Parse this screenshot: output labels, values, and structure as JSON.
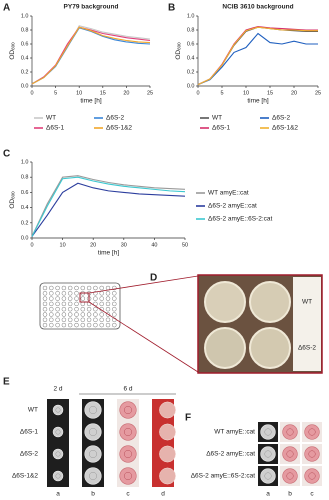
{
  "chart_data": [
    {
      "type": "line",
      "panel_label": "A",
      "title": "PY79 background",
      "ylabel": "OD",
      "ylabel_sub": "600",
      "xlabel": "time [h]",
      "x": [
        0,
        2.5,
        5,
        7.5,
        10,
        12.5,
        15,
        17.5,
        20,
        22.5,
        25
      ],
      "xlim": [
        0,
        25
      ],
      "xticks": [
        0,
        5,
        10,
        15,
        20,
        25
      ],
      "ylim": [
        0,
        1
      ],
      "yticks": [
        {
          "value": 0,
          "label": "0.0"
        },
        0.2,
        0.4,
        0.6,
        0.8,
        {
          "value": 1,
          "label": "1.0"
        }
      ],
      "series": [
        {
          "name": "WT",
          "color": "#c8c8c8",
          "values": [
            0.03,
            0.12,
            0.28,
            0.55,
            0.86,
            0.82,
            0.77,
            0.74,
            0.71,
            0.69,
            0.67
          ]
        },
        {
          "name": "Δ6S-1",
          "color": "#e0407a",
          "values": [
            0.03,
            0.13,
            0.3,
            0.6,
            0.84,
            0.8,
            0.75,
            0.72,
            0.69,
            0.67,
            0.65
          ]
        },
        {
          "name": "Δ6S-2",
          "color": "#3a86d8",
          "values": [
            0.03,
            0.12,
            0.28,
            0.56,
            0.83,
            0.78,
            0.71,
            0.66,
            0.63,
            0.61,
            0.6
          ]
        },
        {
          "name": "Δ6S-1&2",
          "color": "#f2a72a",
          "values": [
            0.03,
            0.12,
            0.29,
            0.57,
            0.84,
            0.79,
            0.72,
            0.68,
            0.65,
            0.63,
            0.62
          ]
        }
      ]
    },
    {
      "type": "line",
      "panel_label": "B",
      "title": "NCIB 3610 background",
      "ylabel": "OD",
      "ylabel_sub": "600",
      "xlabel": "time [h]",
      "x": [
        0,
        2.5,
        5,
        7.5,
        10,
        12.5,
        15,
        17.5,
        20,
        22.5,
        25
      ],
      "xlim": [
        0,
        25
      ],
      "xticks": [
        0,
        5,
        10,
        15,
        20,
        25
      ],
      "ylim": [
        0,
        1
      ],
      "yticks": [
        {
          "value": 0,
          "label": "0.0"
        },
        0.2,
        0.4,
        0.6,
        0.8,
        {
          "value": 1,
          "label": "1.0"
        }
      ],
      "series": [
        {
          "name": "WT",
          "color": "#555555",
          "values": [
            0.02,
            0.1,
            0.3,
            0.58,
            0.78,
            0.84,
            0.82,
            0.8,
            0.79,
            0.78,
            0.78
          ]
        },
        {
          "name": "Δ6S-1",
          "color": "#d6306b",
          "values": [
            0.02,
            0.1,
            0.31,
            0.6,
            0.8,
            0.85,
            0.83,
            0.82,
            0.81,
            0.8,
            0.8
          ]
        },
        {
          "name": "Δ6S-2",
          "color": "#1f5fbf",
          "values": [
            0.02,
            0.09,
            0.27,
            0.48,
            0.55,
            0.75,
            0.62,
            0.6,
            0.64,
            0.6,
            0.6
          ]
        },
        {
          "name": "Δ6S-1&2",
          "color": "#f0b030",
          "values": [
            0.02,
            0.1,
            0.3,
            0.59,
            0.79,
            0.84,
            0.82,
            0.8,
            0.8,
            0.79,
            0.79
          ]
        }
      ]
    },
    {
      "type": "line",
      "panel_label": "C",
      "ylabel": "OD",
      "ylabel_sub": "600",
      "xlabel": "time [h]",
      "x": [
        0,
        5,
        10,
        15,
        20,
        25,
        30,
        35,
        40,
        45,
        50
      ],
      "xlim": [
        0,
        50
      ],
      "xticks": [
        0,
        10,
        20,
        30,
        40,
        50
      ],
      "ylim": [
        0,
        1
      ],
      "yticks": [
        {
          "value": 0,
          "label": "0.0"
        },
        0.2,
        0.4,
        0.6,
        0.8,
        {
          "value": 1,
          "label": "1.0"
        }
      ],
      "series": [
        {
          "name": "WT amyE::cat",
          "color": "#9a9a9a",
          "values": [
            0.02,
            0.45,
            0.8,
            0.82,
            0.77,
            0.73,
            0.7,
            0.68,
            0.66,
            0.65,
            0.64
          ]
        },
        {
          "name": "Δ6S-2 amyE::cat",
          "color": "#2c3e9e",
          "values": [
            0.02,
            0.3,
            0.6,
            0.72,
            0.66,
            0.62,
            0.6,
            0.58,
            0.57,
            0.56,
            0.55
          ]
        },
        {
          "name": "Δ6S-2 amyE::6S-2:cat",
          "color": "#3cc8d0",
          "values": [
            0.02,
            0.42,
            0.78,
            0.8,
            0.75,
            0.71,
            0.68,
            0.66,
            0.64,
            0.62,
            0.61
          ]
        }
      ]
    }
  ],
  "panel_d": {
    "label": "D",
    "rows": [
      "WT",
      "Δ6S-2"
    ]
  },
  "panel_e": {
    "label": "E",
    "headers": [
      "2 d",
      "6 d"
    ],
    "rows": [
      "WT",
      "Δ6S-1",
      "Δ6S-2",
      "Δ6S-1&2"
    ],
    "columns": [
      "a",
      "b",
      "c",
      "d"
    ]
  },
  "panel_f": {
    "label": "F",
    "rows": [
      "WT amyE::cat",
      "Δ6S-2 amyE::cat",
      "Δ6S-2 amyE::6S-2:cat"
    ],
    "columns": [
      "a",
      "b",
      "c"
    ]
  }
}
